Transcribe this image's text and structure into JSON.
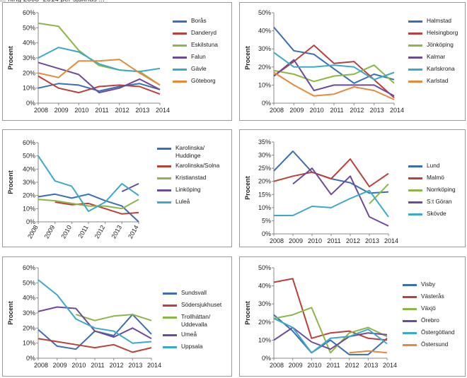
{
  "header_fragment": "... ning 2008–2014 per sjukhus ...",
  "chart_data": [
    {
      "type": "line",
      "ylabel": "Procent",
      "ylim": [
        0,
        60
      ],
      "yticks": [
        "0%",
        "10%",
        "20%",
        "30%",
        "40%",
        "50%",
        "60%"
      ],
      "categories": [
        "2008",
        "2009",
        "2010",
        "2011",
        "2012",
        "2013",
        "2014"
      ],
      "series": [
        {
          "name": "Borås",
          "color": "#3A6EB5",
          "values": [
            10,
            13,
            12,
            8,
            11,
            13,
            9
          ]
        },
        {
          "name": "Danderyd",
          "color": "#B8413A",
          "values": [
            18,
            10,
            7,
            11,
            12,
            11,
            6
          ]
        },
        {
          "name": "Eskilstuna",
          "color": "#8DB547",
          "values": [
            53,
            51,
            35,
            25,
            22,
            21,
            12
          ]
        },
        {
          "name": "Falun",
          "color": "#6E4A9A",
          "values": [
            27,
            23,
            19,
            7,
            10,
            16,
            9
          ]
        },
        {
          "name": "Gävle",
          "color": "#3BA9C8",
          "values": [
            30,
            37,
            34,
            26,
            22,
            21,
            23
          ]
        },
        {
          "name": "Göteborg",
          "color": "#E58A3A",
          "values": [
            20,
            17,
            28,
            28,
            29,
            20,
            12
          ]
        }
      ]
    },
    {
      "type": "line",
      "ylabel": "Procent",
      "ylim": [
        0,
        50
      ],
      "yticks": [
        "0%",
        "10%",
        "20%",
        "30%",
        "40%",
        "50%"
      ],
      "categories": [
        "2008",
        "2009",
        "2010",
        "2011",
        "2012",
        "2013",
        "2014"
      ],
      "series": [
        {
          "name": "Halmstad",
          "color": "#3A6EB5",
          "values": [
            42,
            29,
            27,
            19,
            11,
            16,
            13
          ]
        },
        {
          "name": "Helsingborg",
          "color": "#B8413A",
          "values": [
            15,
            23,
            32,
            22,
            23,
            13,
            3
          ]
        },
        {
          "name": "Jönköping",
          "color": "#8DB547",
          "values": [
            18,
            16,
            12,
            15,
            16,
            21,
            11
          ]
        },
        {
          "name": "Kalmar",
          "color": "#6E4A9A",
          "values": [
            15,
            24,
            7,
            10,
            10,
            10,
            4
          ]
        },
        {
          "name": "Karlskrona",
          "color": "#3BA9C8",
          "values": [
            28,
            20,
            20,
            21,
            20,
            13,
            17
          ]
        },
        {
          "name": "Karlstad",
          "color": "#E58A3A",
          "values": [
            17,
            10,
            4,
            5,
            9,
            7,
            2
          ]
        }
      ]
    },
    {
      "type": "line",
      "ylabel": "Procent",
      "ylim": [
        0,
        60
      ],
      "yticks": [
        "0%",
        "10%",
        "20%",
        "30%",
        "40%",
        "50%",
        "60%"
      ],
      "categories": [
        "2008",
        "2009",
        "2010",
        "2011",
        "2012",
        "2013",
        "2014"
      ],
      "series": [
        {
          "name": "Karolinska/\nHuddinge",
          "color": "#3A6EB5",
          "values": [
            19,
            21,
            18,
            21,
            16,
            12,
            0
          ]
        },
        {
          "name": "Karolinska/Solna",
          "color": "#B8413A",
          "values": [
            null,
            15,
            13,
            14,
            10,
            6,
            7
          ]
        },
        {
          "name": "Kristianstad",
          "color": "#8DB547",
          "values": [
            17,
            16,
            14,
            12,
            12,
            10,
            17
          ]
        },
        {
          "name": "Linköping",
          "color": "#6E4A9A",
          "values": [
            null,
            null,
            null,
            null,
            null,
            23,
            29
          ]
        },
        {
          "name": "Luleå",
          "color": "#3BA9C8",
          "values": [
            50,
            31,
            27,
            8,
            15,
            29,
            20
          ]
        }
      ]
    },
    {
      "type": "line",
      "ylabel": "Procent",
      "ylim": [
        0,
        35
      ],
      "yticks": [
        "0%",
        "5%",
        "10%",
        "15%",
        "20%",
        "25%",
        "30%",
        "35%"
      ],
      "categories": [
        "2008",
        "2009",
        "2010",
        "2011",
        "2012",
        "2013",
        "2014"
      ],
      "series": [
        {
          "name": "Lund",
          "color": "#3A6EB5",
          "values": [
            24,
            31.5,
            23.5,
            21,
            19.5,
            15.5,
            16
          ]
        },
        {
          "name": "Malmö",
          "color": "#B8413A",
          "values": [
            20,
            22,
            23.5,
            21,
            28.5,
            18,
            23
          ]
        },
        {
          "name": "Norrköping",
          "color": "#8DB547",
          "values": [
            null,
            null,
            null,
            null,
            null,
            11.5,
            19
          ]
        },
        {
          "name": "S:t Göran",
          "color": "#6E4A9A",
          "values": [
            null,
            19,
            25,
            15,
            22,
            6.5,
            3
          ]
        },
        {
          "name": "Skövde",
          "color": "#3BA9C8",
          "values": [
            7,
            7,
            10.5,
            10,
            13.5,
            16.5,
            6.5
          ]
        }
      ]
    },
    {
      "type": "line",
      "ylabel": "Procent",
      "ylim": [
        0,
        60
      ],
      "yticks": [
        "0%",
        "10%",
        "20%",
        "30%",
        "40%",
        "50%",
        "60%"
      ],
      "categories": [
        "2008",
        "2009",
        "2010",
        "2011",
        "2012",
        "2013",
        "2014"
      ],
      "series": [
        {
          "name": "Sundsvall",
          "color": "#3A6EB5",
          "values": [
            19,
            8,
            6,
            18,
            15,
            29,
            16
          ]
        },
        {
          "name": "Södersjukhuset",
          "color": "#B8413A",
          "values": [
            13,
            11,
            9,
            7,
            9,
            4,
            7
          ]
        },
        {
          "name": "Trollhättan/\nUddevalla",
          "color": "#8DB547",
          "values": [
            null,
            null,
            29,
            25,
            28,
            29,
            25
          ]
        },
        {
          "name": "Umeå",
          "color": "#6E4A9A",
          "values": [
            31,
            34,
            33,
            18,
            14,
            20,
            13
          ]
        },
        {
          "name": "Uppsala",
          "color": "#3BA9C8",
          "values": [
            52,
            42,
            26,
            20,
            18,
            10,
            11
          ]
        }
      ]
    },
    {
      "type": "line",
      "ylabel": "Procent",
      "ylim": [
        0,
        50
      ],
      "yticks": [
        "0%",
        "10%",
        "20%",
        "30%",
        "40%",
        "50%"
      ],
      "categories": [
        "2008",
        "2009",
        "2010",
        "2011",
        "2012",
        "2013",
        "2014"
      ],
      "series": [
        {
          "name": "Visby",
          "color": "#3A6EB5",
          "values": [
            24,
            15,
            3,
            10,
            2,
            2,
            11
          ]
        },
        {
          "name": "Västerås",
          "color": "#B8413A",
          "values": [
            42,
            44,
            11,
            14,
            15,
            11,
            10
          ]
        },
        {
          "name": "Växjö",
          "color": "#8DB547",
          "values": [
            22,
            24,
            28,
            3,
            14,
            17,
            12
          ]
        },
        {
          "name": "Örebro",
          "color": "#6E4A9A",
          "values": [
            10,
            17,
            9,
            5,
            12,
            14,
            13
          ]
        },
        {
          "name": "Östergötland",
          "color": "#3BA9C8",
          "values": [
            22,
            17,
            3,
            11,
            12,
            16,
            8
          ]
        },
        {
          "name": "Östersund",
          "color": "#E58A3A",
          "values": [
            null,
            null,
            null,
            null,
            3,
            4,
            3
          ]
        }
      ]
    }
  ]
}
